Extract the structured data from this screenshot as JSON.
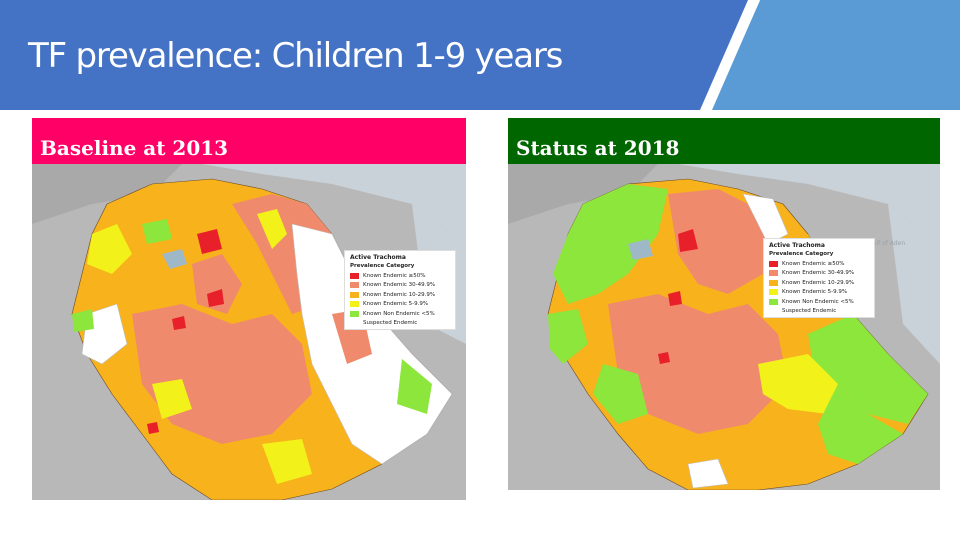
{
  "slide": {
    "title": "TF prevalence: Children 1-9 years",
    "header_color": "#4472c4",
    "accent_color": "#5b9bd5"
  },
  "panels": [
    {
      "label": "Baseline at 2013",
      "label_color": "#ff0066",
      "legend_title": "Active Trachoma",
      "legend_subtitle": "Prevalence Category",
      "legend_items": [
        {
          "label": "Known Endemic ≥50%",
          "color": "#e8202a"
        },
        {
          "label": "Known Endemic 30-49.9%",
          "color": "#f08a6c"
        },
        {
          "label": "Known Endemic 10-29.9%",
          "color": "#f7b21c"
        },
        {
          "label": "Known Endemic 5-9.9%",
          "color": "#f2f21a"
        },
        {
          "label": "Known Non Endemic <5%",
          "color": "#8ce63c"
        },
        {
          "label": "Suspected Endemic",
          "color": ""
        }
      ]
    },
    {
      "label": "Status at 2018",
      "label_color": "#006600",
      "place_label": "Gulf of Aden",
      "legend_title": "Active Trachoma",
      "legend_subtitle": "Prevalence Category",
      "legend_items": [
        {
          "label": "Known Endemic ≥50%",
          "color": "#e8202a"
        },
        {
          "label": "Known Endemic 30-49.9%",
          "color": "#f08a6c"
        },
        {
          "label": "Known Endemic 10-29.9%",
          "color": "#f7b21c"
        },
        {
          "label": "Known Endemic 5-9.9%",
          "color": "#f2f21a"
        },
        {
          "label": "Known Non Endemic <5%",
          "color": "#8ce63c"
        },
        {
          "label": "Suspected Endemic",
          "color": ""
        }
      ]
    }
  ]
}
